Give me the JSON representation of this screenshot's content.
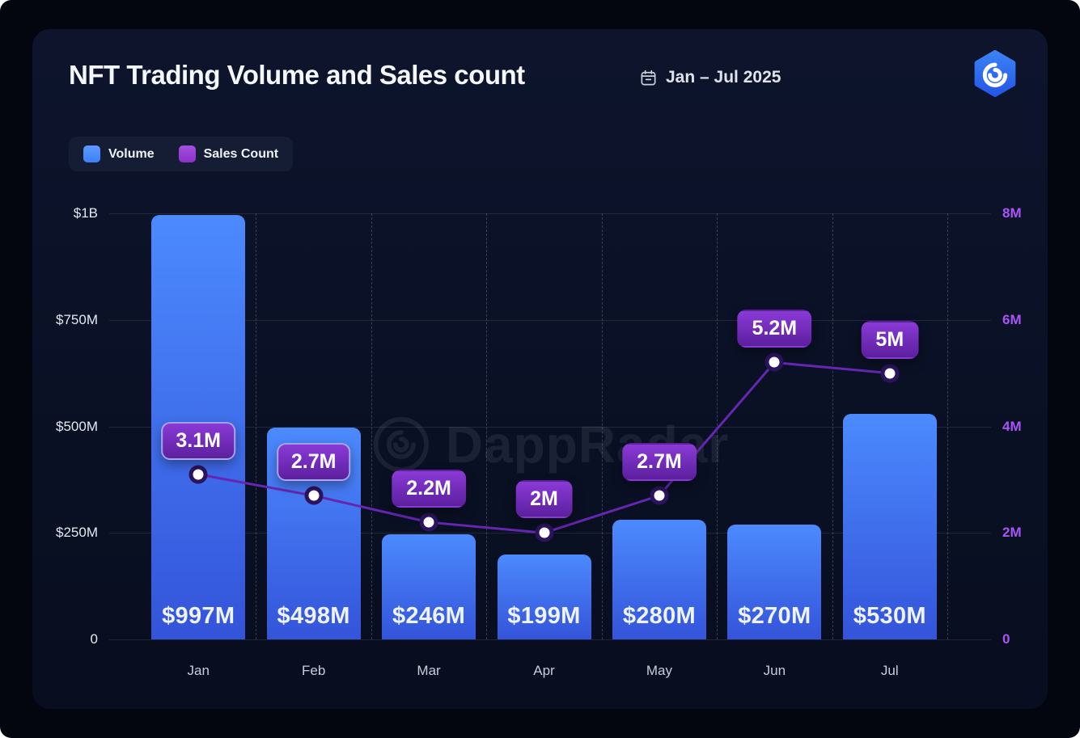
{
  "header": {
    "title": "NFT Trading Volume and Sales count",
    "date_range": "Jan – Jul 2025"
  },
  "legend": {
    "items": [
      {
        "label": "Volume"
      },
      {
        "label": "Sales Count"
      }
    ]
  },
  "watermark_text": "DappRadar",
  "chart_data": {
    "type": "bar+line",
    "title": "NFT Trading Volume and Sales count",
    "subtitle": "Jan – Jul 2025",
    "categories": [
      "Jan",
      "Feb",
      "Mar",
      "Apr",
      "May",
      "Jun",
      "Jul"
    ],
    "series": [
      {
        "name": "Volume",
        "type": "bar",
        "axis": "left",
        "unit": "USD millions",
        "values": [
          997,
          498,
          246,
          199,
          280,
          270,
          530
        ],
        "labels": [
          "$997M",
          "$498M",
          "$246M",
          "$199M",
          "$280M",
          "$270M",
          "$530M"
        ]
      },
      {
        "name": "Sales Count",
        "type": "line",
        "axis": "right",
        "unit": "millions",
        "values": [
          3.1,
          2.7,
          2.2,
          2,
          2.7,
          5.2,
          5
        ],
        "labels": [
          "3.1M",
          "2.7M",
          "2.2M",
          "2M",
          "2.7M",
          "5.2M",
          "5M"
        ]
      }
    ],
    "left_axis": {
      "max": 1000,
      "ticks": [
        {
          "value": 1000,
          "label": "$1B"
        },
        {
          "value": 750,
          "label": "$750M"
        },
        {
          "value": 500,
          "label": "$500M"
        },
        {
          "value": 250,
          "label": "$250M"
        },
        {
          "value": 0,
          "label": "0"
        }
      ]
    },
    "right_axis": {
      "max": 8,
      "ticks": [
        {
          "value": 8,
          "label": "8M"
        },
        {
          "value": 6,
          "label": "6M"
        },
        {
          "value": 4,
          "label": "4M"
        },
        {
          "value": 2,
          "label": "2M"
        },
        {
          "value": 0,
          "label": "0"
        }
      ]
    },
    "grid": {
      "horizontal": "solid",
      "vertical": "dashed"
    },
    "legend_position": "top-left",
    "colors": {
      "bar_top": "#4c8afe",
      "bar_bottom": "#3454da",
      "line": "#6527b0",
      "pill_top": "#8a3ad6",
      "pill_bottom": "#5c1f9f",
      "right_axis": "#a855f7",
      "dot_ring": "#2c135e",
      "legend_volume": "#3d80fb",
      "legend_sales": "#8b2fc9",
      "card_background": "#0b1227"
    }
  }
}
